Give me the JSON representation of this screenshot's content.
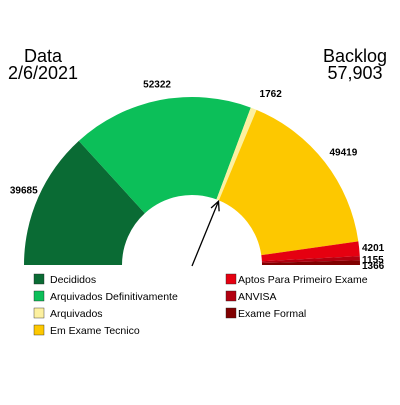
{
  "header": {
    "left_title": "Data",
    "left_value": "2/6/2021",
    "right_title": "Backlog",
    "right_value": "57,903"
  },
  "chart_data": {
    "type": "gauge",
    "categories": [
      "Decididos",
      "Arquivados Definitivamente",
      "Arquivados",
      "Em Exame Tecnico",
      "Aptos Para Primeiro Exame",
      "ANVISA",
      "Exame Formal"
    ],
    "values": [
      39685,
      52322,
      1762,
      49419,
      4201,
      1155,
      1366
    ],
    "colors": [
      "#0a6b34",
      "#0cbf59",
      "#fcf0a0",
      "#fdc800",
      "#e50010",
      "#b20010",
      "#800000"
    ],
    "data_labels": [
      "39685",
      "52322",
      "1762",
      "49419",
      "4201",
      "1155",
      "1366"
    ],
    "needle_cumulative_value": 93769,
    "legend_position": "bottom",
    "grid": false
  }
}
